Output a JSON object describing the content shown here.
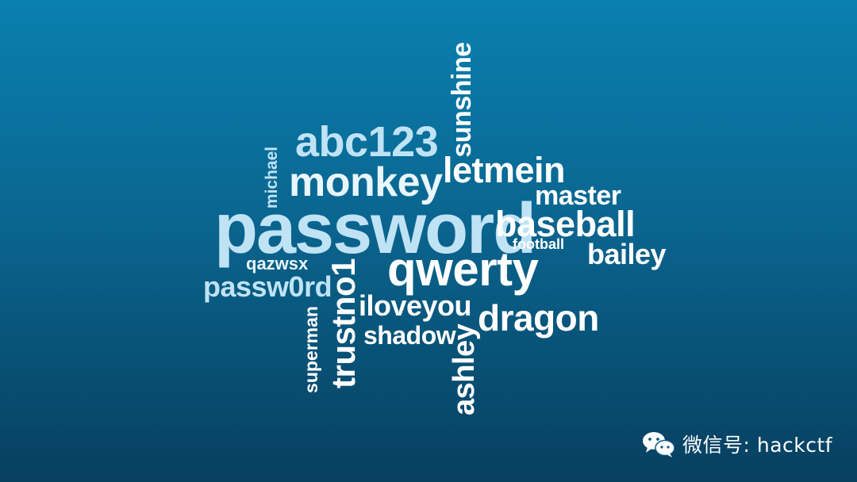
{
  "word_cloud": {
    "words": {
      "password": "password",
      "abc123": "abc123",
      "monkey": "monkey",
      "letmein": "letmein",
      "master": "master",
      "baseball": "baseball",
      "football": "football",
      "bailey": "bailey",
      "qwerty": "qwerty",
      "qazwsx": "qazwsx",
      "passw0rd": "passw0rd",
      "iloveyou": "iloveyou",
      "dragon": "dragon",
      "shadow": "shadow",
      "sunshine": "sunshine",
      "michael": "michael",
      "trustno1": "trustno1",
      "superman": "superman",
      "ashley": "ashley"
    }
  },
  "watermark": {
    "icon": "wechat-icon",
    "text": "微信号: hackctf"
  }
}
